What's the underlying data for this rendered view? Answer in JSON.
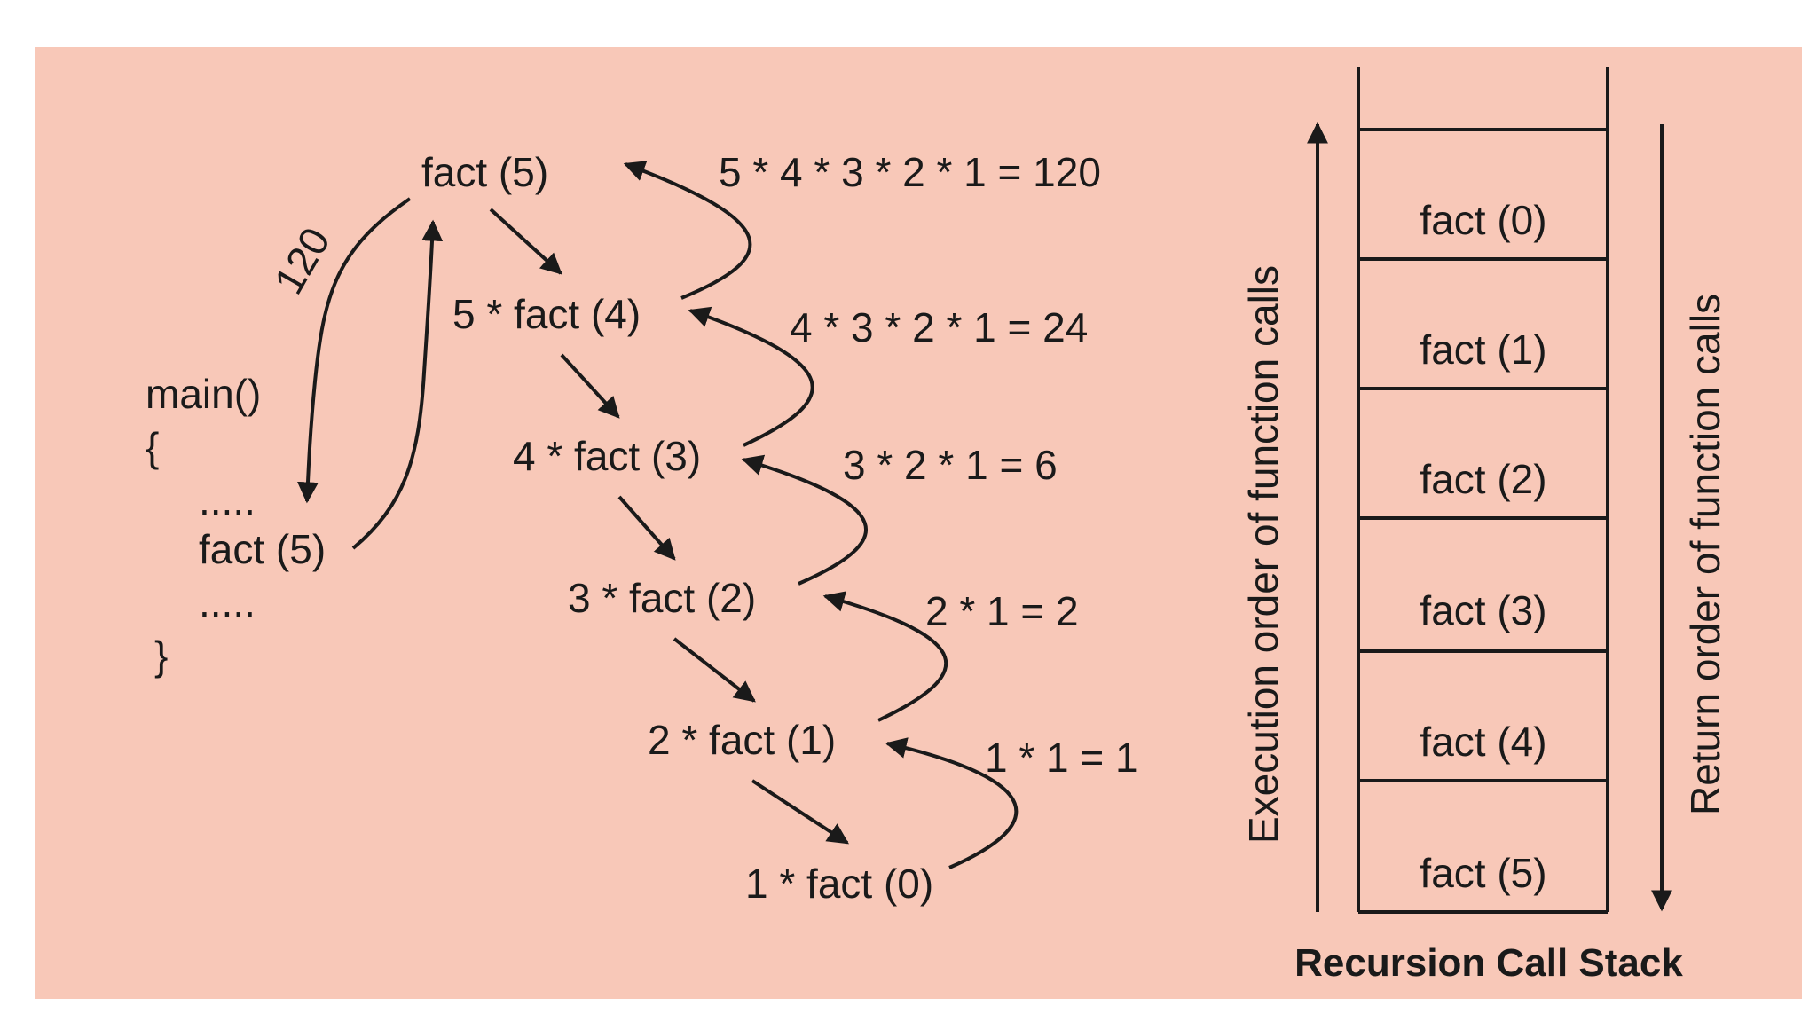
{
  "colors": {
    "background": "#f8c8b8",
    "ink": "#1a1a1a"
  },
  "code": {
    "main": "main()",
    "open_brace": "{",
    "dots_top": ".....",
    "call": "fact (5)",
    "dots_bottom": ".....",
    "close_brace": "}"
  },
  "result_label": "120",
  "calls": [
    "fact (5)",
    "5 * fact (4)",
    "4 * fact (3)",
    "3 * fact (2)",
    "2 * fact (1)",
    "1 * fact (0)"
  ],
  "returns": [
    "5 * 4 * 3 * 2 * 1 = 120",
    "4 * 3 * 2 * 1 = 24",
    "3 * 2 * 1 = 6",
    "2 * 1 = 2",
    "1 * 1 = 1"
  ],
  "stack": {
    "frames": [
      "fact (0)",
      "fact (1)",
      "fact (2)",
      "fact (3)",
      "fact (4)",
      "fact (5)"
    ],
    "execution_label": "Execution order of function calls",
    "return_label": "Return order of function calls",
    "title": "Recursion Call Stack"
  }
}
